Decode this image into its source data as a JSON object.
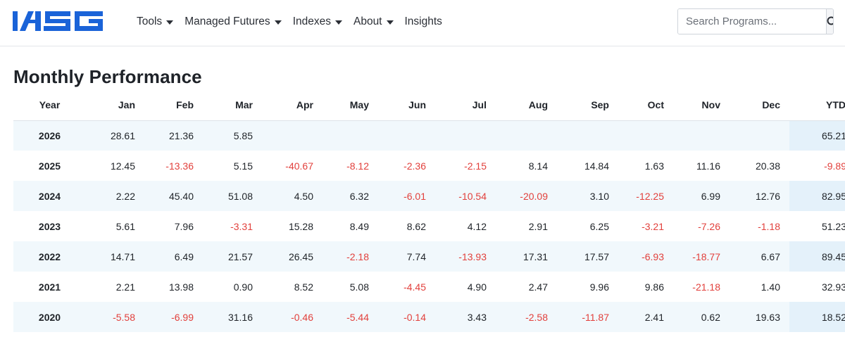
{
  "header": {
    "logo_text": "IASG",
    "nav": [
      {
        "label": "Tools",
        "dropdown": true
      },
      {
        "label": "Managed Futures",
        "dropdown": true
      },
      {
        "label": "Indexes",
        "dropdown": true
      },
      {
        "label": "About",
        "dropdown": true
      },
      {
        "label": "Insights",
        "dropdown": false
      }
    ],
    "search": {
      "placeholder": "Search Programs...",
      "icon": "search-icon"
    }
  },
  "colors": {
    "brand": "#1a63d8",
    "negative": "#e2403c",
    "shaded_row": "#f1f8fc",
    "ytd_shaded": "#e4f1fa"
  },
  "title": "Monthly Performance",
  "table": {
    "columns": [
      "Year",
      "Jan",
      "Feb",
      "Mar",
      "Apr",
      "May",
      "Jun",
      "Jul",
      "Aug",
      "Sep",
      "Oct",
      "Nov",
      "Dec",
      "YTD"
    ],
    "rows": [
      {
        "year": "2026",
        "values": [
          "28.61",
          "21.36",
          "5.85",
          "",
          "",
          "",
          "",
          "",
          "",
          "",
          "",
          ""
        ],
        "ytd": "65.21"
      },
      {
        "year": "2025",
        "values": [
          "12.45",
          "-13.36",
          "5.15",
          "-40.67",
          "-8.12",
          "-2.36",
          "-2.15",
          "8.14",
          "14.84",
          "1.63",
          "11.16",
          "20.38"
        ],
        "ytd": "-9.89"
      },
      {
        "year": "2024",
        "values": [
          "2.22",
          "45.40",
          "51.08",
          "4.50",
          "6.32",
          "-6.01",
          "-10.54",
          "-20.09",
          "3.10",
          "-12.25",
          "6.99",
          "12.76"
        ],
        "ytd": "82.95"
      },
      {
        "year": "2023",
        "values": [
          "5.61",
          "7.96",
          "-3.31",
          "15.28",
          "8.49",
          "8.62",
          "4.12",
          "2.91",
          "6.25",
          "-3.21",
          "-7.26",
          "-1.18"
        ],
        "ytd": "51.23"
      },
      {
        "year": "2022",
        "values": [
          "14.71",
          "6.49",
          "21.57",
          "26.45",
          "-2.18",
          "7.74",
          "-13.93",
          "17.31",
          "17.57",
          "-6.93",
          "-18.77",
          "6.67"
        ],
        "ytd": "89.45"
      },
      {
        "year": "2021",
        "values": [
          "2.21",
          "13.98",
          "0.90",
          "8.52",
          "5.08",
          "-4.45",
          "4.90",
          "2.47",
          "9.96",
          "9.86",
          "-21.18",
          "1.40"
        ],
        "ytd": "32.93"
      },
      {
        "year": "2020",
        "values": [
          "-5.58",
          "-6.99",
          "31.16",
          "-0.46",
          "-5.44",
          "-0.14",
          "3.43",
          "-2.58",
          "-11.87",
          "2.41",
          "0.62",
          "19.63"
        ],
        "ytd": "18.52"
      }
    ]
  }
}
